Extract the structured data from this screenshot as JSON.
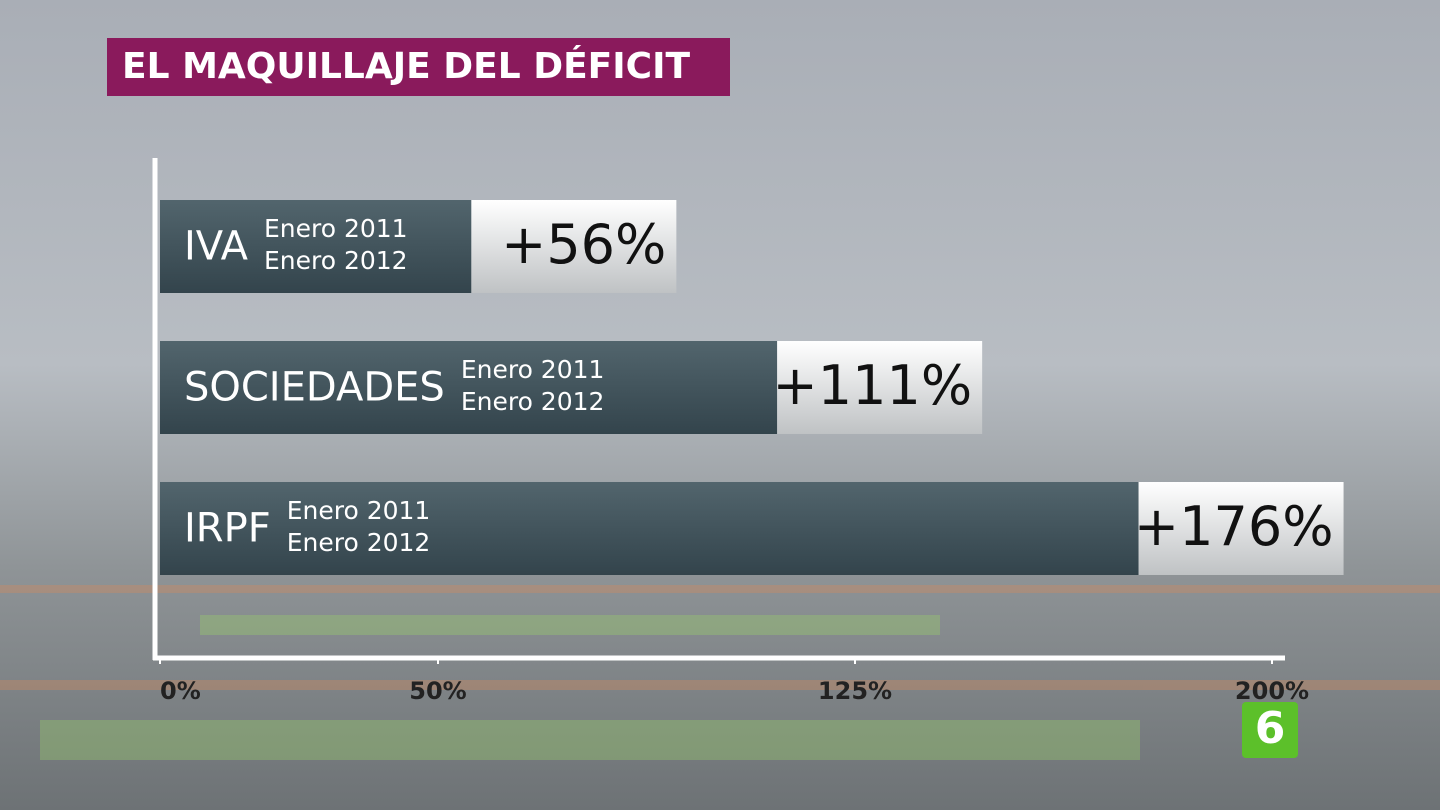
{
  "chart_data": {
    "type": "hbar",
    "title": "EL MAQUILLAJE DEL DÉFICIT",
    "categories": [
      "IVA",
      "SOCIEDADES",
      "IRPF"
    ],
    "bar_sublabels": [
      [
        "Enero 2011",
        "Enero 2012"
      ],
      [
        "Enero 2011",
        "Enero 2012"
      ],
      [
        "Enero 2011",
        "Enero 2012"
      ]
    ],
    "values": [
      56,
      111,
      176
    ],
    "value_labels": [
      "+56%",
      "+111%",
      "+176%"
    ],
    "color": "#3b4d55",
    "xlim": [
      0,
      200
    ],
    "xticks": [
      {
        "value": 0,
        "label": "0%"
      },
      {
        "value": 50,
        "label": "50%"
      },
      {
        "value": 125,
        "label": "125%"
      },
      {
        "value": 200,
        "label": "200%"
      }
    ]
  },
  "logo": "6"
}
